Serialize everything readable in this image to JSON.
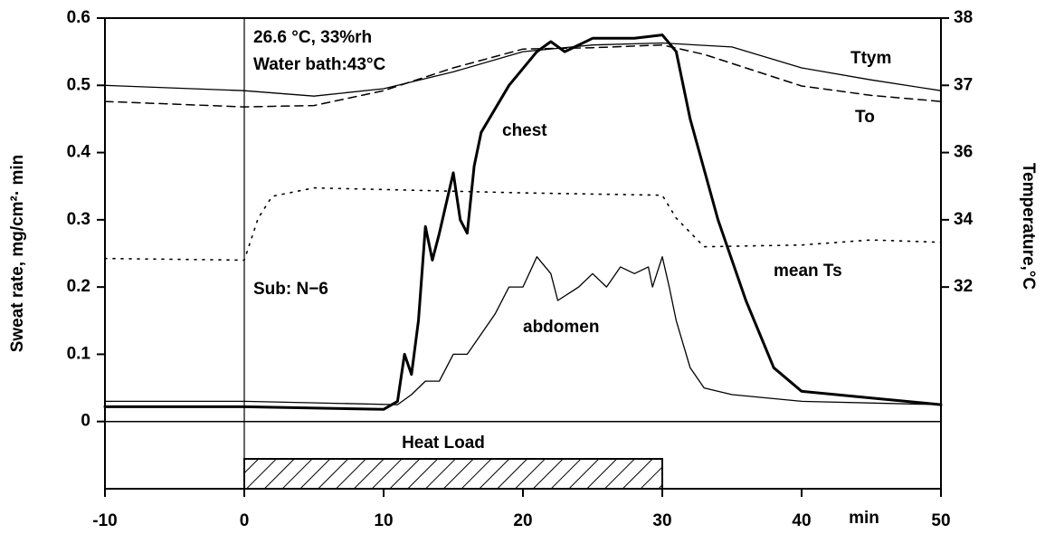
{
  "chart_data": {
    "type": "line",
    "xlabel": "min",
    "ylabel": "Sweat rate, mg/cm²· min",
    "y2label": "Temperature,°C",
    "xlim": [
      -10,
      50
    ],
    "xticks": [
      -10,
      0,
      10,
      20,
      30,
      40,
      50
    ],
    "ylim": [
      -0.1,
      0.6
    ],
    "yticks": [
      0,
      0.1,
      0.2,
      0.3,
      0.4,
      0.5,
      0.6
    ],
    "y2lim": [
      32,
      38
    ],
    "y2ticks": [
      32,
      34,
      36,
      37,
      38
    ],
    "annotations": [
      "26.6 °C, 33%rh",
      "Water bath:43°C",
      "Sub: N−6",
      "Ttym",
      "To",
      "chest",
      "mean Ts",
      "abdomen"
    ],
    "heat_load": {
      "label": "Heat Load",
      "start": 0,
      "end": 30
    },
    "series": [
      {
        "name": "Ttym",
        "color": "#000000",
        "axis": "y2",
        "line_style": "solid",
        "linewidth": 1.3,
        "x": [
          -10,
          0,
          5,
          10,
          15,
          20,
          25,
          30,
          35,
          40,
          45,
          50
        ],
        "values": [
          37.0,
          36.92,
          36.84,
          36.95,
          37.2,
          37.5,
          37.6,
          37.63,
          37.57,
          37.26,
          37.08,
          36.92
        ]
      },
      {
        "name": "To",
        "color": "#000000",
        "axis": "y2",
        "line_style": "dashed",
        "linewidth": 1.5,
        "x": [
          -10,
          0,
          5,
          10,
          15,
          20,
          25,
          30,
          33,
          40,
          45,
          50
        ],
        "values": [
          36.76,
          36.68,
          36.7,
          36.92,
          37.26,
          37.54,
          37.56,
          37.6,
          37.46,
          36.99,
          36.85,
          36.76
        ]
      },
      {
        "name": "mean Ts",
        "color": "#000000",
        "axis": "y2",
        "line_style": "dotted",
        "linewidth": 1.6,
        "x": [
          -10,
          0,
          1,
          2,
          5,
          10,
          20,
          30,
          31,
          33,
          40,
          45,
          50
        ],
        "values": [
          32.85,
          32.8,
          34.05,
          34.7,
          34.95,
          34.9,
          34.8,
          34.73,
          34.05,
          33.2,
          33.25,
          33.4,
          33.33
        ]
      },
      {
        "name": "chest",
        "color": "#000000",
        "axis": "y",
        "line_style": "solid",
        "linewidth": 3,
        "x": [
          -10,
          0,
          10,
          11,
          11.5,
          12,
          12.5,
          13,
          13.5,
          14,
          15,
          15.5,
          16,
          16.5,
          17,
          19,
          21,
          22,
          23,
          25,
          28,
          30,
          31,
          32,
          34,
          36,
          38,
          40,
          45,
          50
        ],
        "values": [
          0.022,
          0.022,
          0.018,
          0.03,
          0.1,
          0.07,
          0.15,
          0.29,
          0.24,
          0.28,
          0.37,
          0.3,
          0.28,
          0.38,
          0.43,
          0.5,
          0.55,
          0.565,
          0.55,
          0.57,
          0.57,
          0.575,
          0.55,
          0.45,
          0.3,
          0.18,
          0.08,
          0.045,
          0.035,
          0.025
        ]
      },
      {
        "name": "abdomen",
        "color": "#000000",
        "axis": "y",
        "line_style": "solid",
        "linewidth": 1.3,
        "x": [
          -10,
          0,
          11,
          12,
          13,
          14,
          15,
          16,
          17,
          18,
          19,
          20,
          21,
          22,
          22.5,
          24,
          25,
          26,
          27,
          28,
          29,
          29.3,
          30,
          30.5,
          31,
          32,
          33,
          35,
          40,
          50
        ],
        "values": [
          0.03,
          0.03,
          0.025,
          0.04,
          0.06,
          0.06,
          0.1,
          0.1,
          0.13,
          0.16,
          0.2,
          0.2,
          0.245,
          0.22,
          0.18,
          0.2,
          0.22,
          0.2,
          0.23,
          0.22,
          0.23,
          0.2,
          0.245,
          0.2,
          0.15,
          0.08,
          0.05,
          0.04,
          0.03,
          0.025
        ]
      }
    ]
  }
}
